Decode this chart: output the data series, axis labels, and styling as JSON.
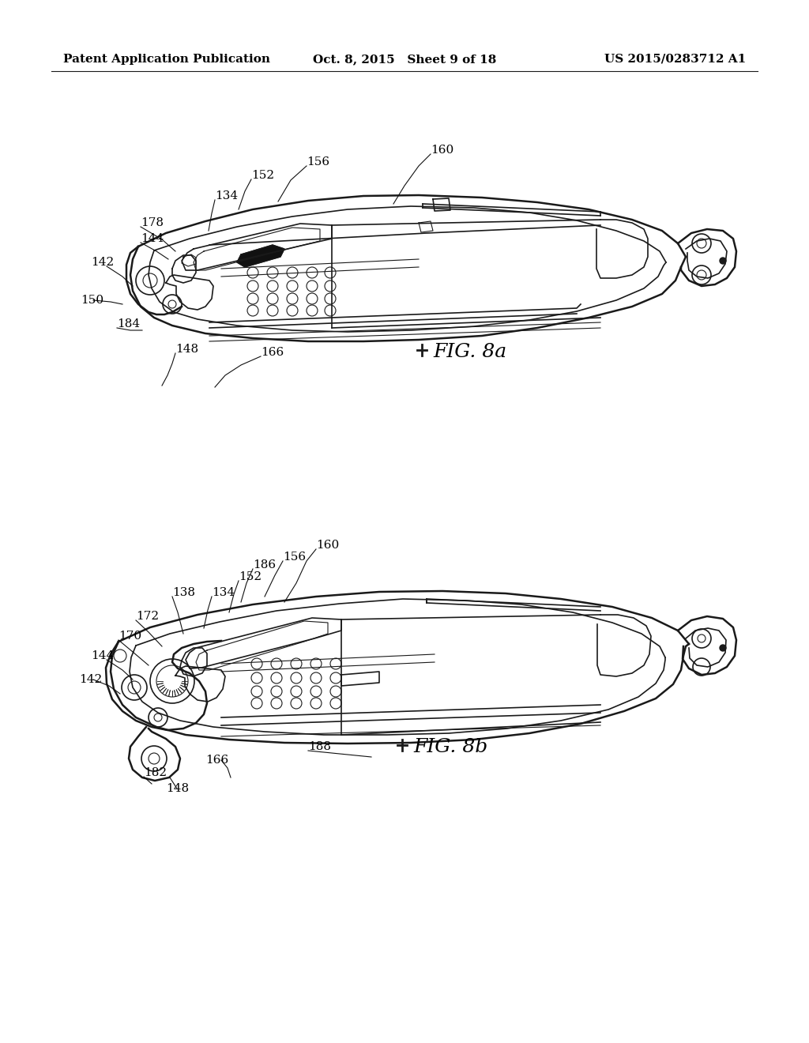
{
  "title_left": "Patent Application Publication",
  "title_center": "Oct. 8, 2015   Sheet 9 of 18",
  "title_right": "US 2015/0283712 A1",
  "fig_label_a": "FIG. 8a",
  "fig_label_b": "FIG. 8b",
  "background_color": "#ffffff",
  "text_color": "#000000",
  "line_color": "#1a1a1a",
  "header_fontsize": 11,
  "label_fontsize": 11,
  "fig_label_fontsize": 18
}
